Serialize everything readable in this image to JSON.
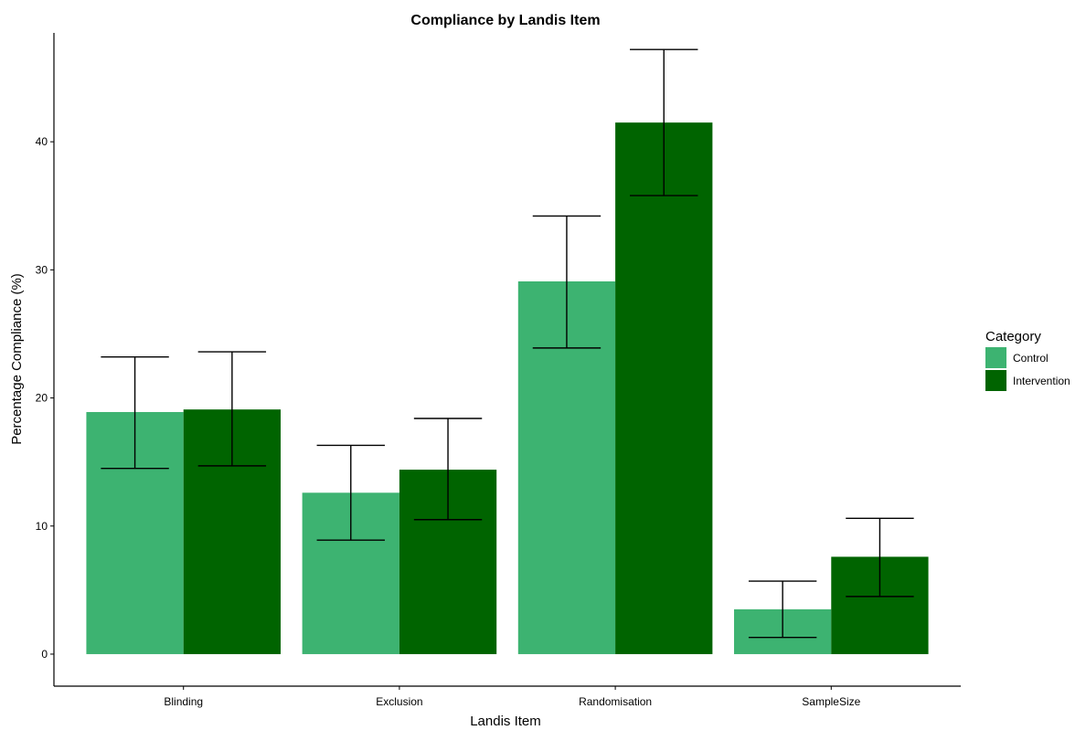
{
  "chart_data": {
    "type": "bar",
    "title": "Compliance by Landis Item",
    "xlabel": "Landis Item",
    "ylabel": "Percentage Compliance (%)",
    "categories": [
      "Blinding",
      "Exclusion",
      "Randomisation",
      "SampleSize"
    ],
    "ylim": [
      -2.5,
      48.5
    ],
    "yticks": [
      0,
      10,
      20,
      30,
      40
    ],
    "grid": false,
    "legend": {
      "title": "Category",
      "position": "right"
    },
    "series": [
      {
        "name": "Control",
        "color": "#3db371",
        "values": [
          18.9,
          12.6,
          29.1,
          3.5
        ],
        "error_low": [
          14.5,
          8.9,
          23.9,
          1.3
        ],
        "error_high": [
          23.2,
          16.3,
          34.2,
          5.7
        ]
      },
      {
        "name": "Intervention",
        "color": "#006400",
        "values": [
          19.1,
          14.4,
          41.5,
          7.6
        ],
        "error_low": [
          14.7,
          10.5,
          35.8,
          4.5
        ],
        "error_high": [
          23.6,
          18.4,
          47.2,
          10.6
        ]
      }
    ]
  }
}
